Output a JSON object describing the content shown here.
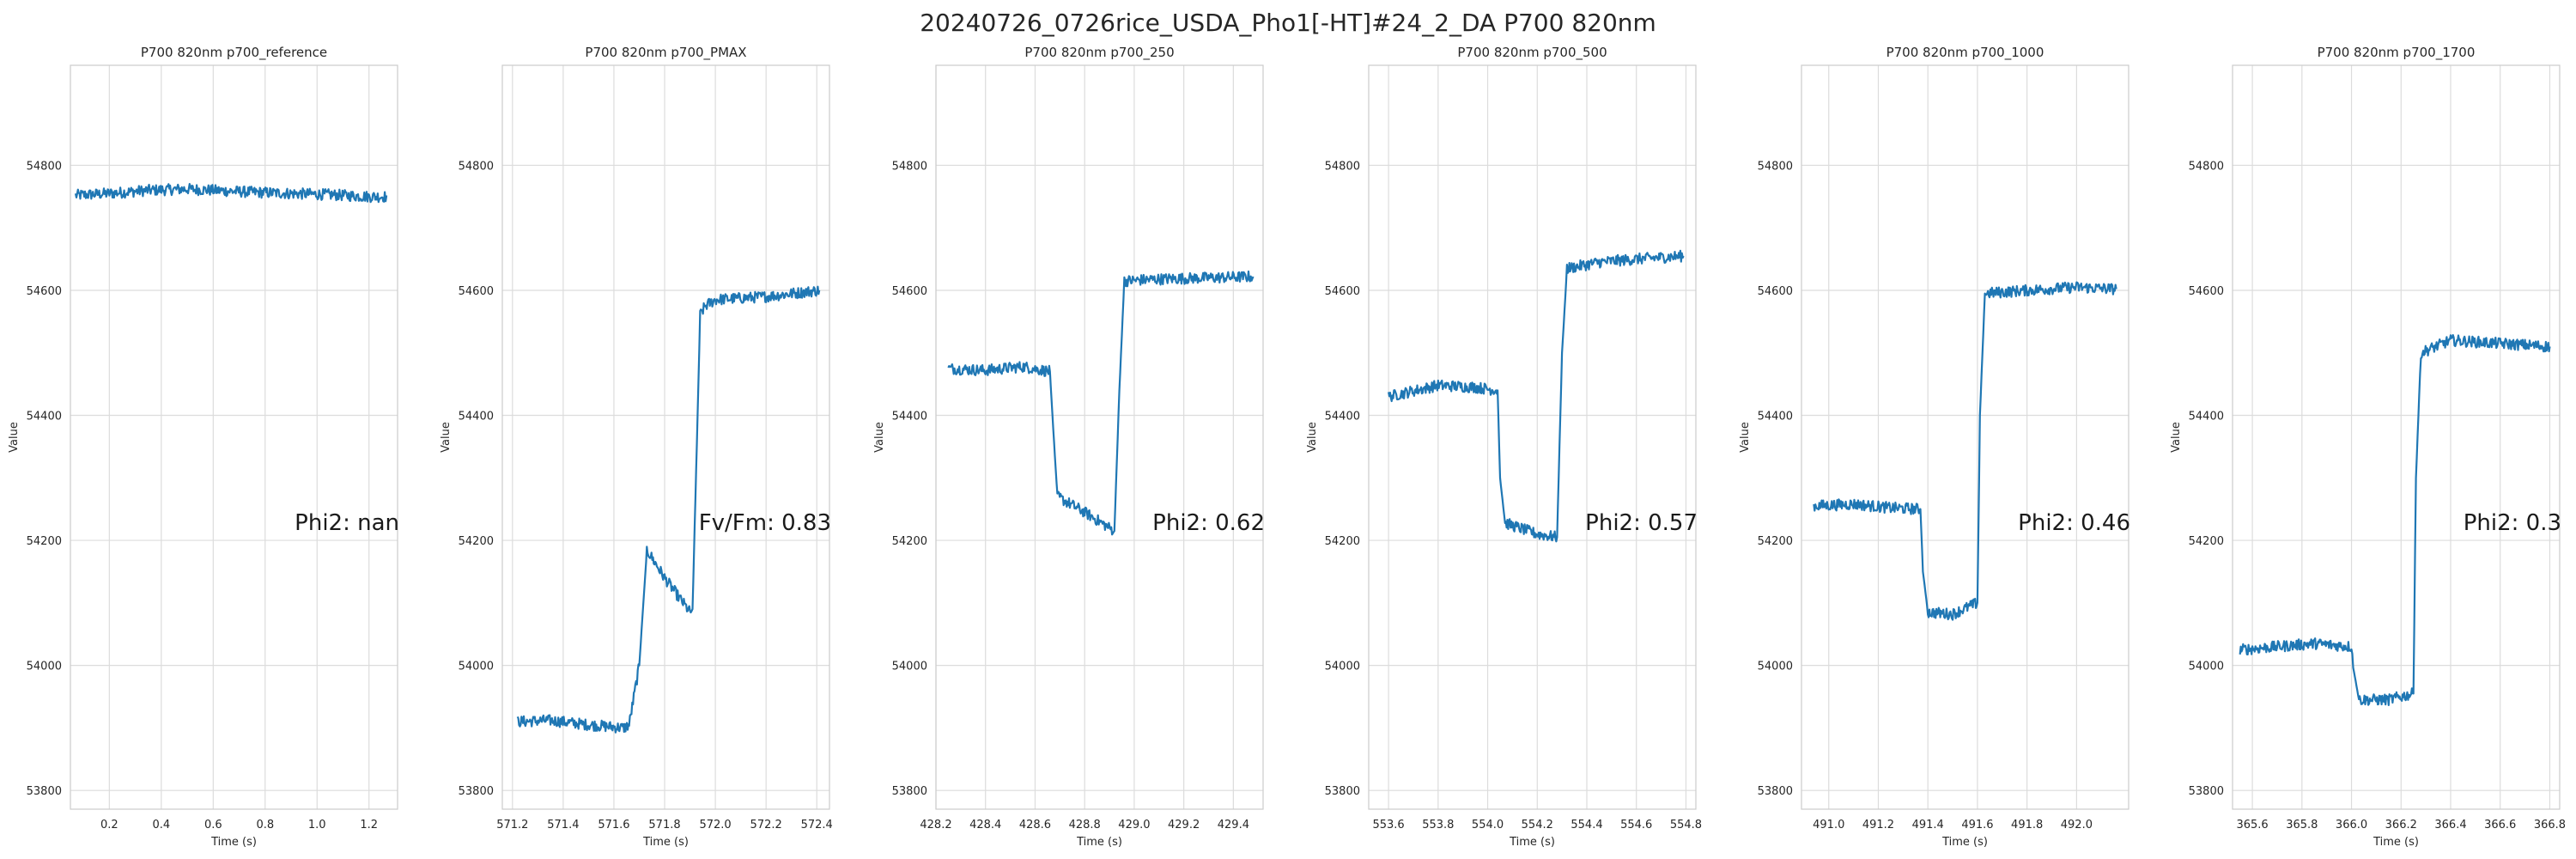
{
  "figure": {
    "title": "20240726_0726rice_USDA_Pho1[-HT]#24_2_DA P700 820nm"
  },
  "colors": {
    "line": "#1f77b4",
    "grid": "#dcdcdc",
    "spine": "#cccccc"
  },
  "chart_data": [
    {
      "type": "line",
      "title": "P700 820nm p700_reference",
      "xlabel": "Time (s)",
      "ylabel": "Value",
      "xlim": [
        0.05,
        1.31
      ],
      "ylim": [
        53770,
        54960
      ],
      "xticks": [
        0.2,
        0.4,
        0.6,
        0.8,
        1.0,
        1.2
      ],
      "xtick_labels": [
        "0.2",
        "0.4",
        "0.6",
        "0.8",
        "1.0",
        "1.2"
      ],
      "yticks": [
        53800,
        54000,
        54200,
        54400,
        54600,
        54800
      ],
      "ytick_labels": [
        "53800",
        "54000",
        "54200",
        "54400",
        "54600",
        "54800"
      ],
      "grid": true,
      "annotation": "Phi2: nan",
      "series": [
        {
          "x": [
            0.07,
            0.2,
            0.35,
            0.5,
            0.6,
            0.75,
            0.9,
            1.05,
            1.2,
            1.27
          ],
          "y": [
            54752,
            54755,
            54760,
            54762,
            54760,
            54757,
            54755,
            54753,
            54750,
            54750
          ]
        }
      ]
    },
    {
      "type": "line",
      "title": "P700 820nm p700_PMAX",
      "xlabel": "Time (s)",
      "ylabel": "Value",
      "xlim": [
        571.16,
        572.45
      ],
      "ylim": [
        53770,
        54960
      ],
      "xticks": [
        571.2,
        571.4,
        571.6,
        571.8,
        572.0,
        572.2,
        572.4
      ],
      "xtick_labels": [
        "571.2",
        "571.4",
        "571.6",
        "571.8",
        "572.0",
        "572.2",
        "572.4"
      ],
      "yticks": [
        53800,
        54000,
        54200,
        54400,
        54600,
        54800
      ],
      "ytick_labels": [
        "53800",
        "54000",
        "54200",
        "54400",
        "54600",
        "54800"
      ],
      "grid": true,
      "annotation": "Fv/Fm: 0.83",
      "series": [
        {
          "x": [
            571.22,
            571.35,
            571.5,
            571.64,
            571.66,
            571.7,
            571.73,
            571.8,
            571.9,
            571.91,
            571.93,
            571.94,
            571.96,
            572.0,
            572.2,
            572.41
          ],
          "y": [
            53910,
            53912,
            53905,
            53900,
            53905,
            54000,
            54185,
            54140,
            54085,
            54090,
            54400,
            54560,
            54575,
            54585,
            54590,
            54600
          ]
        }
      ]
    },
    {
      "type": "line",
      "title": "P700 820nm p700_250",
      "xlabel": "Time (s)",
      "ylabel": "Value",
      "xlim": [
        428.2,
        429.52
      ],
      "ylim": [
        53770,
        54960
      ],
      "xticks": [
        428.2,
        428.4,
        428.6,
        428.8,
        429.0,
        429.2,
        429.4
      ],
      "xtick_labels": [
        "428.2",
        "428.4",
        "428.6",
        "428.8",
        "429.0",
        "429.2",
        "429.4"
      ],
      "yticks": [
        53800,
        54000,
        54200,
        54400,
        54600,
        54800
      ],
      "ytick_labels": [
        "53800",
        "54000",
        "54200",
        "54400",
        "54600",
        "54800"
      ],
      "grid": true,
      "annotation": "Phi2: 0.62",
      "series": [
        {
          "x": [
            428.25,
            428.4,
            428.55,
            428.66,
            428.67,
            428.69,
            428.8,
            428.92,
            428.94,
            428.96,
            429.1,
            429.3,
            429.48
          ],
          "y": [
            54475,
            54472,
            54478,
            54470,
            54400,
            54270,
            54245,
            54215,
            54440,
            54615,
            54618,
            54620,
            54622
          ]
        }
      ]
    },
    {
      "type": "line",
      "title": "P700 820nm p700_500",
      "xlabel": "Time (s)",
      "ylabel": "Value",
      "xlim": [
        553.52,
        554.84
      ],
      "ylim": [
        53770,
        54960
      ],
      "xticks": [
        553.6,
        553.8,
        554.0,
        554.2,
        554.4,
        554.6,
        554.8
      ],
      "xtick_labels": [
        "553.6",
        "553.8",
        "554.0",
        "554.2",
        "554.4",
        "554.6",
        "554.8"
      ],
      "yticks": [
        53800,
        54000,
        54200,
        54400,
        54600,
        54800
      ],
      "ytick_labels": [
        "53800",
        "54000",
        "54200",
        "54400",
        "54600",
        "54800"
      ],
      "grid": true,
      "annotation": "Phi2: 0.57",
      "series": [
        {
          "x": [
            553.6,
            553.8,
            553.95,
            554.04,
            554.05,
            554.07,
            554.2,
            554.28,
            554.3,
            554.32,
            554.45,
            554.6,
            554.79
          ],
          "y": [
            54430,
            54448,
            54445,
            54440,
            54300,
            54228,
            54210,
            54205,
            54500,
            54635,
            54645,
            54650,
            54655
          ]
        }
      ]
    },
    {
      "type": "line",
      "title": "P700 820nm p700_1000",
      "xlabel": "Time (s)",
      "ylabel": "Value",
      "xlim": [
        490.89,
        492.21
      ],
      "ylim": [
        53770,
        54960
      ],
      "xticks": [
        491.0,
        491.2,
        491.4,
        491.6,
        491.8,
        492.0
      ],
      "xtick_labels": [
        "491.0",
        "491.2",
        "491.4",
        "491.6",
        "491.8",
        "492.0"
      ],
      "yticks": [
        53800,
        54000,
        54200,
        54400,
        54600,
        54800
      ],
      "ytick_labels": [
        "53800",
        "54000",
        "54200",
        "54400",
        "54600",
        "54800"
      ],
      "grid": true,
      "annotation": "Phi2: 0.46",
      "series": [
        {
          "x": [
            490.94,
            491.1,
            491.25,
            491.37,
            491.38,
            491.4,
            491.5,
            491.6,
            491.61,
            491.63,
            491.8,
            492.0,
            492.16
          ],
          "y": [
            54255,
            54258,
            54252,
            54250,
            54150,
            54085,
            54082,
            54100,
            54400,
            54595,
            54600,
            54605,
            54602
          ]
        }
      ]
    },
    {
      "type": "line",
      "title": "P700 820nm p700_1700",
      "xlabel": "Time (s)",
      "ylabel": "Value",
      "xlim": [
        365.52,
        366.84
      ],
      "ylim": [
        53770,
        54960
      ],
      "xticks": [
        365.6,
        365.8,
        366.0,
        366.2,
        366.4,
        366.6,
        366.8
      ],
      "xtick_labels": [
        "365.6",
        "365.8",
        "366.0",
        "366.2",
        "366.4",
        "366.6",
        "366.8"
      ],
      "yticks": [
        53800,
        54000,
        54200,
        54400,
        54600,
        54800
      ],
      "ytick_labels": [
        "53800",
        "54000",
        "54200",
        "54400",
        "54600",
        "54800"
      ],
      "grid": true,
      "annotation": "Phi2: 0.3",
      "series": [
        {
          "x": [
            365.55,
            365.7,
            365.85,
            366.0,
            366.01,
            366.03,
            366.15,
            366.25,
            366.26,
            366.28,
            366.4,
            366.6,
            366.8
          ],
          "y": [
            54025,
            54030,
            54035,
            54030,
            53990,
            53945,
            53945,
            53955,
            54300,
            54500,
            54520,
            54515,
            54510
          ]
        }
      ]
    }
  ]
}
